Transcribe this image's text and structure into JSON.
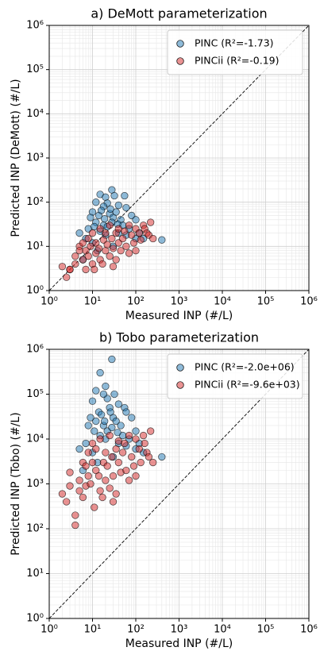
{
  "chart_data": [
    {
      "type": "scatter",
      "title": "a) DeMott parameterization",
      "x_label": "Measured INP (#/L)",
      "y_label": "Predicted INP (DeMott) (#/L)",
      "log_x": true,
      "log_y": true,
      "grid": true,
      "minor_grid": true,
      "one_to_one_line": true,
      "legend": "upper right",
      "xlim": [
        1,
        1000000
      ],
      "ylim": [
        1,
        1000000
      ],
      "xticks": [
        {
          "value": 1,
          "label": "10⁰"
        },
        {
          "value": 10,
          "label": "10¹"
        },
        {
          "value": 100,
          "label": "10²"
        },
        {
          "value": 1000,
          "label": "10³"
        },
        {
          "value": 10000,
          "label": "10⁴"
        },
        {
          "value": 100000,
          "label": "10⁵"
        },
        {
          "value": 1000000,
          "label": "10⁶"
        }
      ],
      "yticks": [
        {
          "value": 1,
          "label": "10⁰"
        },
        {
          "value": 10,
          "label": "10¹"
        },
        {
          "value": 100,
          "label": "10²"
        },
        {
          "value": 1000,
          "label": "10³"
        },
        {
          "value": 10000,
          "label": "10⁴"
        },
        {
          "value": 100000,
          "label": "10⁵"
        },
        {
          "value": 1000000,
          "label": "10⁶"
        }
      ],
      "series": [
        {
          "name": "PINC (R²=-1.73)",
          "color": "#1f77b4",
          "x": [
            28,
            15,
            20,
            32,
            55,
            12,
            22,
            18,
            40,
            60,
            10,
            14,
            25,
            30,
            35,
            45,
            80,
            100,
            12,
            18,
            22,
            28,
            50,
            70,
            8,
            15,
            20,
            40,
            60,
            100,
            400,
            5,
            7,
            10,
            13,
            30,
            6,
            9,
            16,
            26,
            38,
            120,
            150,
            11,
            19
          ],
          "values": [
            190,
            150,
            130,
            140,
            140,
            100,
            95,
            80,
            85,
            75,
            60,
            50,
            55,
            45,
            60,
            40,
            50,
            40,
            35,
            30,
            28,
            35,
            30,
            25,
            25,
            22,
            18,
            20,
            18,
            15,
            14,
            20,
            15,
            12,
            8,
            10,
            5,
            45,
            65,
            70,
            32,
            20,
            15,
            28,
            42
          ]
        },
        {
          "name": "PINCii (R²=-0.19)",
          "color": "#d62728",
          "x": [
            2,
            2.5,
            3,
            4,
            4,
            5,
            5,
            6,
            6,
            7,
            7,
            8,
            8,
            9,
            10,
            10,
            12,
            12,
            14,
            15,
            15,
            18,
            20,
            20,
            22,
            25,
            25,
            28,
            30,
            35,
            35,
            40,
            40,
            45,
            50,
            55,
            60,
            70,
            70,
            80,
            90,
            100,
            100,
            120,
            130,
            150,
            160,
            180,
            200,
            220,
            250,
            3,
            11,
            17,
            30
          ],
          "values": [
            3.5,
            2,
            3,
            4,
            6,
            10,
            8,
            5,
            12,
            3,
            8,
            15,
            6,
            10,
            4,
            20,
            7,
            12,
            9,
            25,
            5,
            14,
            8,
            20,
            11,
            6,
            30,
            15,
            9,
            20,
            5,
            12,
            25,
            8,
            15,
            22,
            10,
            30,
            7,
            18,
            12,
            25,
            8,
            20,
            14,
            30,
            25,
            20,
            18,
            35,
            15,
            3,
            3,
            4,
            3.5
          ]
        }
      ]
    },
    {
      "type": "scatter",
      "title": "b) Tobo parameterization",
      "x_label": "Measured INP (#/L)",
      "y_label": "Predicted INP (Tobo) (#/L)",
      "log_x": true,
      "log_y": true,
      "grid": true,
      "minor_grid": true,
      "one_to_one_line": true,
      "legend": "upper right",
      "xlim": [
        1,
        1000000
      ],
      "ylim": [
        1,
        1000000
      ],
      "xticks": [
        {
          "value": 1,
          "label": "10⁰"
        },
        {
          "value": 10,
          "label": "10¹"
        },
        {
          "value": 100,
          "label": "10²"
        },
        {
          "value": 1000,
          "label": "10³"
        },
        {
          "value": 10000,
          "label": "10⁴"
        },
        {
          "value": 100000,
          "label": "10⁵"
        },
        {
          "value": 1000000,
          "label": "10⁶"
        }
      ],
      "yticks": [
        {
          "value": 1,
          "label": "10⁰"
        },
        {
          "value": 10,
          "label": "10¹"
        },
        {
          "value": 100,
          "label": "10²"
        },
        {
          "value": 1000,
          "label": "10³"
        },
        {
          "value": 10000,
          "label": "10⁴"
        },
        {
          "value": 100000,
          "label": "10⁵"
        },
        {
          "value": 1000000,
          "label": "10⁶"
        }
      ],
      "series": [
        {
          "name": "PINC (R²=-2.0e+06)",
          "color": "#1f77b4",
          "x": [
            28,
            15,
            20,
            32,
            55,
            12,
            22,
            18,
            40,
            60,
            10,
            14,
            25,
            30,
            35,
            45,
            80,
            100,
            12,
            18,
            22,
            28,
            50,
            70,
            8,
            15,
            20,
            40,
            60,
            100,
            400,
            5,
            7,
            10,
            13,
            30,
            6,
            9,
            16,
            26,
            38,
            120,
            150,
            11,
            19
          ],
          "values": [
            600000,
            300000,
            150000,
            100000,
            50000,
            120000,
            80000,
            100000,
            60000,
            40000,
            70000,
            40000,
            50000,
            30000,
            25000,
            20000,
            30000,
            15000,
            25000,
            20000,
            15000,
            18000,
            12000,
            10000,
            20000,
            12000,
            10000,
            8000,
            7000,
            6000,
            4000,
            6000,
            8000,
            5000,
            3000,
            4000,
            2000,
            30000,
            35000,
            40000,
            14000,
            8000,
            5000,
            15000,
            25000
          ]
        },
        {
          "name": "PINCii (R²=-9.6e+03)",
          "color": "#d62728",
          "x": [
            2,
            2.5,
            3,
            4,
            4,
            5,
            5,
            6,
            6,
            7,
            7,
            8,
            8,
            9,
            10,
            10,
            12,
            12,
            14,
            15,
            15,
            18,
            20,
            20,
            22,
            25,
            25,
            28,
            30,
            35,
            35,
            40,
            40,
            45,
            50,
            55,
            60,
            70,
            70,
            80,
            90,
            100,
            100,
            120,
            130,
            150,
            160,
            180,
            200,
            220,
            250,
            3,
            11,
            17,
            30
          ],
          "values": [
            600,
            400,
            1800,
            120,
            200,
            1200,
            700,
            3000,
            500,
            900,
            2500,
            5000,
            1500,
            1000,
            3000,
            8000,
            2000,
            6000,
            1500,
            10000,
            700,
            3000,
            1200,
            5000,
            2500,
            800,
            12000,
            4000,
            1500,
            6000,
            600,
            3000,
            9000,
            1800,
            5000,
            8000,
            2000,
            12000,
            1200,
            4000,
            2500,
            10000,
            1500,
            6000,
            3000,
            12000,
            8000,
            5000,
            4000,
            15000,
            3000,
            900,
            300,
            500,
            400
          ]
        }
      ]
    }
  ]
}
